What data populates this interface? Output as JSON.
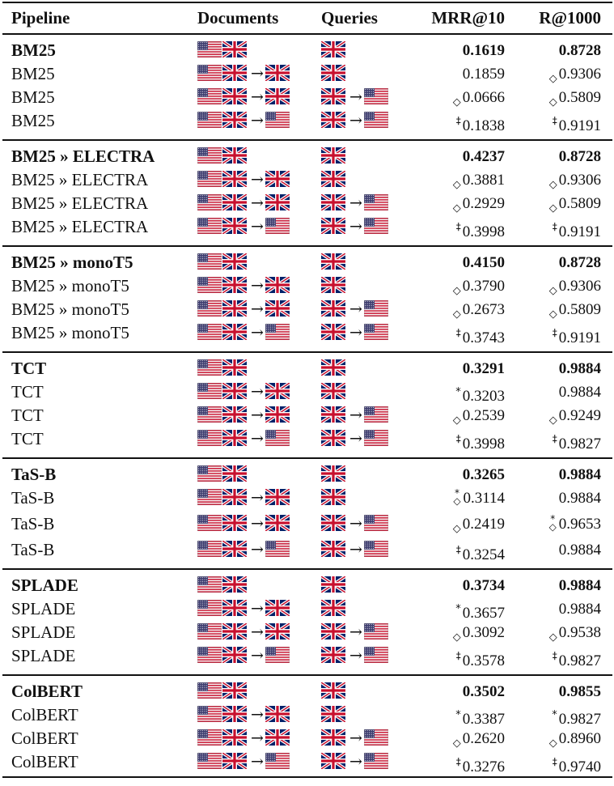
{
  "headers": {
    "pipeline": "Pipeline",
    "documents": "Documents",
    "queries": "Queries",
    "mrr": "MRR@10",
    "recall": "R@1000"
  },
  "legend": {
    "us_flag": "us-flag-icon",
    "uk_flag": "uk-flag-icon",
    "arrow": "→",
    "markers": {
      "diamond": "◇",
      "dagger": "‡",
      "star": "*",
      "star_diamond": "*◇"
    }
  },
  "groups": [
    {
      "rows": [
        {
          "pipeline": "BM25",
          "bold": true,
          "docs_to": "",
          "qry_to": "",
          "mrr_marker": "",
          "mrr": "0.1619",
          "rec_marker": "",
          "rec": "0.8728"
        },
        {
          "pipeline": "BM25",
          "bold": false,
          "docs_to": "uk",
          "qry_to": "",
          "mrr_marker": "",
          "mrr": "0.1859",
          "rec_marker": "◇",
          "rec": "0.9306"
        },
        {
          "pipeline": "BM25",
          "bold": false,
          "docs_to": "uk",
          "qry_to": "us",
          "mrr_marker": "◇",
          "mrr": "0.0666",
          "rec_marker": "◇",
          "rec": "0.5809"
        },
        {
          "pipeline": "BM25",
          "bold": false,
          "docs_to": "us",
          "qry_to": "us",
          "mrr_marker": "‡",
          "mrr": "0.1838",
          "rec_marker": "‡",
          "rec": "0.9191"
        }
      ]
    },
    {
      "rows": [
        {
          "pipeline": "BM25 » ELECTRA",
          "bold": true,
          "docs_to": "",
          "qry_to": "",
          "mrr_marker": "",
          "mrr": "0.4237",
          "rec_marker": "",
          "rec": "0.8728"
        },
        {
          "pipeline": "BM25 » ELECTRA",
          "bold": false,
          "docs_to": "uk",
          "qry_to": "",
          "mrr_marker": "◇",
          "mrr": "0.3881",
          "rec_marker": "◇",
          "rec": "0.9306"
        },
        {
          "pipeline": "BM25 » ELECTRA",
          "bold": false,
          "docs_to": "uk",
          "qry_to": "us",
          "mrr_marker": "◇",
          "mrr": "0.2929",
          "rec_marker": "◇",
          "rec": "0.5809"
        },
        {
          "pipeline": "BM25 » ELECTRA",
          "bold": false,
          "docs_to": "us",
          "qry_to": "us",
          "mrr_marker": "‡",
          "mrr": "0.3998",
          "rec_marker": "‡",
          "rec": "0.9191"
        }
      ]
    },
    {
      "rows": [
        {
          "pipeline": "BM25 » monoT5",
          "bold": true,
          "docs_to": "",
          "qry_to": "",
          "mrr_marker": "",
          "mrr": "0.4150",
          "rec_marker": "",
          "rec": "0.8728"
        },
        {
          "pipeline": "BM25 » monoT5",
          "bold": false,
          "docs_to": "uk",
          "qry_to": "",
          "mrr_marker": "◇",
          "mrr": "0.3790",
          "rec_marker": "◇",
          "rec": "0.9306"
        },
        {
          "pipeline": "BM25 » monoT5",
          "bold": false,
          "docs_to": "uk",
          "qry_to": "us",
          "mrr_marker": "◇",
          "mrr": "0.2673",
          "rec_marker": "◇",
          "rec": "0.5809"
        },
        {
          "pipeline": "BM25 » monoT5",
          "bold": false,
          "docs_to": "us",
          "qry_to": "us",
          "mrr_marker": "‡",
          "mrr": "0.3743",
          "rec_marker": "‡",
          "rec": "0.9191"
        }
      ]
    },
    {
      "rows": [
        {
          "pipeline": "TCT",
          "bold": true,
          "docs_to": "",
          "qry_to": "",
          "mrr_marker": "",
          "mrr": "0.3291",
          "rec_marker": "",
          "rec": "0.9884"
        },
        {
          "pipeline": "TCT",
          "bold": false,
          "docs_to": "uk",
          "qry_to": "",
          "mrr_marker": "*",
          "mrr": "0.3203",
          "rec_marker": "",
          "rec": "0.9884"
        },
        {
          "pipeline": "TCT",
          "bold": false,
          "docs_to": "uk",
          "qry_to": "us",
          "mrr_marker": "◇",
          "mrr": "0.2539",
          "rec_marker": "◇",
          "rec": "0.9249"
        },
        {
          "pipeline": "TCT",
          "bold": false,
          "docs_to": "us",
          "qry_to": "us",
          "mrr_marker": "‡",
          "mrr": "0.3998",
          "rec_marker": "‡",
          "rec": "0.9827"
        }
      ]
    },
    {
      "rows": [
        {
          "pipeline": "TaS-B",
          "bold": true,
          "docs_to": "",
          "qry_to": "",
          "mrr_marker": "",
          "mrr": "0.3265",
          "rec_marker": "",
          "rec": "0.9884"
        },
        {
          "pipeline": "TaS-B",
          "bold": false,
          "docs_to": "uk",
          "qry_to": "",
          "mrr_marker": "*◇",
          "mrr": "0.3114",
          "rec_marker": "",
          "rec": "0.9884"
        },
        {
          "pipeline": "TaS-B",
          "bold": false,
          "docs_to": "uk",
          "qry_to": "us",
          "mrr_marker": "◇",
          "mrr": "0.2419",
          "rec_marker": "*◇",
          "rec": "0.9653"
        },
        {
          "pipeline": "TaS-B",
          "bold": false,
          "docs_to": "us",
          "qry_to": "us",
          "mrr_marker": "‡",
          "mrr": "0.3254",
          "rec_marker": "",
          "rec": "0.9884"
        }
      ]
    },
    {
      "rows": [
        {
          "pipeline": "SPLADE",
          "bold": true,
          "docs_to": "",
          "qry_to": "",
          "mrr_marker": "",
          "mrr": "0.3734",
          "rec_marker": "",
          "rec": "0.9884"
        },
        {
          "pipeline": "SPLADE",
          "bold": false,
          "docs_to": "uk",
          "qry_to": "",
          "mrr_marker": "*",
          "mrr": "0.3657",
          "rec_marker": "",
          "rec": "0.9884"
        },
        {
          "pipeline": "SPLADE",
          "bold": false,
          "docs_to": "uk",
          "qry_to": "us",
          "mrr_marker": "◇",
          "mrr": "0.3092",
          "rec_marker": "◇",
          "rec": "0.9538"
        },
        {
          "pipeline": "SPLADE",
          "bold": false,
          "docs_to": "us",
          "qry_to": "us",
          "mrr_marker": "‡",
          "mrr": "0.3578",
          "rec_marker": "‡",
          "rec": "0.9827"
        }
      ]
    },
    {
      "rows": [
        {
          "pipeline": "ColBERT",
          "bold": true,
          "docs_to": "",
          "qry_to": "",
          "mrr_marker": "",
          "mrr": "0.3502",
          "rec_marker": "",
          "rec": "0.9855"
        },
        {
          "pipeline": "ColBERT",
          "bold": false,
          "docs_to": "uk",
          "qry_to": "",
          "mrr_marker": "*",
          "mrr": "0.3387",
          "rec_marker": "*",
          "rec": "0.9827"
        },
        {
          "pipeline": "ColBERT",
          "bold": false,
          "docs_to": "uk",
          "qry_to": "us",
          "mrr_marker": "◇",
          "mrr": "0.2620",
          "rec_marker": "◇",
          "rec": "0.8960"
        },
        {
          "pipeline": "ColBERT",
          "bold": false,
          "docs_to": "us",
          "qry_to": "us",
          "mrr_marker": "‡",
          "mrr": "0.3276",
          "rec_marker": "‡",
          "rec": "0.9740"
        }
      ]
    }
  ]
}
